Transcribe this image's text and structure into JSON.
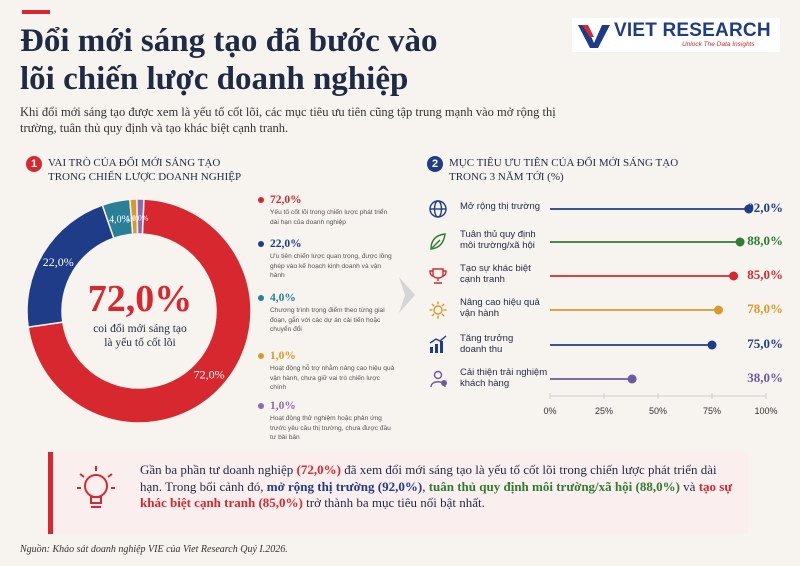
{
  "header": {
    "title_line1": "Đổi mới sáng tạo đã bước vào",
    "title_line2": "lõi chiến lược doanh nghiệp",
    "subtitle": "Khi đổi mới sáng tạo được xem là yếu tố cốt lõi, các mục tiêu ưu tiên cũng tập trung mạnh vào mở rộng thị trường, tuân thủ quy định và tạo khác biệt cạnh tranh."
  },
  "logo": {
    "name": "VIET RESEARCH",
    "tagline": "Unlock The Data Insights"
  },
  "section1": {
    "number": "1",
    "title_line1": "VAI TRÒ CỦA ĐỔI MỚI SÁNG TẠO",
    "title_line2": "TRONG CHIẾN LƯỢC DOANH NGHIỆP",
    "center_value": "72,0%",
    "center_label_line1": "coi đổi mới sáng tạo",
    "center_label_line2": "là yếu tố cốt lõi"
  },
  "section2": {
    "number": "2",
    "title_line1": "MỤC TIÊU ƯU TIÊN CỦA ĐỔI MỚI SÁNG TẠO",
    "title_line2": "TRONG 3 NĂM TỚI (%)"
  },
  "colors": {
    "red": "#d7282f",
    "blue": "#1f3c88",
    "teal": "#2a7f96",
    "orange": "#d99a2b",
    "purple": "#8a6bb3",
    "green": "#2e7d32"
  },
  "chart_data": [
    {
      "type": "pie",
      "donut": true,
      "slices": [
        {
          "label": "72,0%",
          "value": 72.0,
          "color": "#d7282f",
          "description": "Yếu tố cốt lõi trong chiến lược phát triển dài hạn của doanh nghiệp"
        },
        {
          "label": "22,0%",
          "value": 22.0,
          "color": "#1f3c88",
          "description": "Ưu tiên chiến lược quan trọng, được lồng ghép vào kế hoạch kinh doanh và vận hành"
        },
        {
          "label": "4,0%",
          "value": 4.0,
          "color": "#2a7f96",
          "description": "Chương trình trọng điểm theo từng giai đoạn, gắn với các dự án cải tiến hoặc chuyển đổi"
        },
        {
          "label": "1,0%",
          "value": 1.0,
          "color": "#d99a2b",
          "description": "Hoạt động hỗ trợ nhằm nâng cao hiệu quả vận hành, chưa giữ vai trò chiến lược chính"
        },
        {
          "label": "1,0%",
          "value": 1.0,
          "color": "#8a6bb3",
          "description": "Hoạt động thử nghiệm hoặc phản ứng trước yêu cầu thị trường, chưa được đầu tư bài bản"
        }
      ]
    },
    {
      "type": "bar",
      "orientation": "horizontal",
      "style": "lollipop",
      "categories": [
        "Mở rộng thị trường",
        "Tuân thủ quy định môi trường/xã hội",
        "Tạo sự khác biệt cạnh tranh",
        "Nâng cao hiệu quả vận hành",
        "Tăng trưởng doanh thu",
        "Cải thiện trải nghiệm khách hàng"
      ],
      "category_lines": [
        [
          "Mở rộng thị trường"
        ],
        [
          "Tuân thủ quy định",
          "môi trường/xã hội"
        ],
        [
          "Tạo sự khác biệt",
          "cạnh tranh"
        ],
        [
          "Nâng cao hiệu quả",
          "vận hành"
        ],
        [
          "Tăng trưởng",
          "doanh thu"
        ],
        [
          "Cải thiện trải nghiệm",
          "khách hàng"
        ]
      ],
      "values": [
        92.0,
        88.0,
        85.0,
        78.0,
        75.0,
        38.0
      ],
      "value_labels": [
        "92,0%",
        "88,0%",
        "85,0%",
        "78,0%",
        "75,0%",
        "38,0%"
      ],
      "colors": [
        "#1f3c88",
        "#2e7d32",
        "#d7282f",
        "#d99a2b",
        "#1f3c88",
        "#6b5aa0"
      ],
      "icons": [
        "globe-icon",
        "leaf-icon",
        "trophy-icon",
        "gear-icon",
        "growth-chart-icon",
        "customer-icon"
      ],
      "xlim": [
        0,
        100
      ],
      "xticks": [
        "0%",
        "25%",
        "50%",
        "75%",
        "100%"
      ]
    }
  ],
  "insight": {
    "t1": "Gần ba phần tư doanh nghiệp ",
    "h1": "(72,0%)",
    "t2": " đã xem đổi mới sáng tạo là yếu tố cốt lõi trong chiến lược phát triển dài hạn. Trong bối cảnh đó, ",
    "h2": "mở rộng thị trường (92,0%)",
    "t3": ", ",
    "h3": "tuân thủ quy định môi trường/xã hội (88,0%)",
    "t4": " và ",
    "h4": "tạo sự khác biệt cạnh tranh (85,0%)",
    "t5": " trở thành ba mục tiêu nổi bật nhất."
  },
  "source": "Nguồn: Khảo sát doanh nghiệp VIE của Viet Research Quý I.2026."
}
